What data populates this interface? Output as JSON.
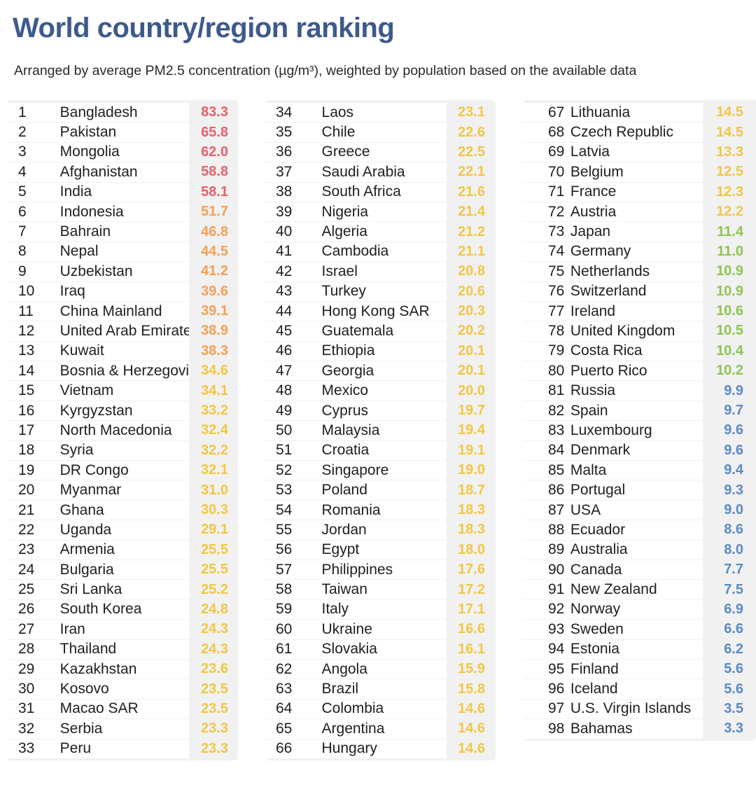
{
  "title": "World country/region ranking",
  "subtitle": "Arranged by average PM2.5 concentration (µg/m³), weighted by population based on the available data",
  "colors": {
    "red": "#e8606b",
    "orange": "#f4a056",
    "yellow": "#f2c744",
    "green": "#8fc553",
    "blue": "#5b8bc6",
    "panel_bg": "#f1f1f1",
    "title": "#3d5a8a"
  },
  "chart_data": {
    "type": "table",
    "metric": "Average PM2.5 concentration (µg/m³)",
    "rows": [
      {
        "rank": "1",
        "name": "Bangladesh",
        "value": 83.3,
        "color": "red"
      },
      {
        "rank": "2",
        "name": "Pakistan",
        "value": 65.8,
        "color": "red"
      },
      {
        "rank": "3",
        "name": "Mongolia",
        "value": 62.0,
        "color": "red"
      },
      {
        "rank": "4",
        "name": "Afghanistan",
        "value": 58.8,
        "color": "red"
      },
      {
        "rank": "5",
        "name": "India",
        "value": 58.1,
        "color": "red"
      },
      {
        "rank": "6",
        "name": "Indonesia",
        "value": 51.7,
        "color": "orange"
      },
      {
        "rank": "7",
        "name": "Bahrain",
        "value": 46.8,
        "color": "orange"
      },
      {
        "rank": "8",
        "name": "Nepal",
        "value": 44.5,
        "color": "orange"
      },
      {
        "rank": "9",
        "name": "Uzbekistan",
        "value": 41.2,
        "color": "orange"
      },
      {
        "rank": "10",
        "name": "Iraq",
        "value": 39.6,
        "color": "orange"
      },
      {
        "rank": "11",
        "name": "China Mainland",
        "value": 39.1,
        "color": "orange"
      },
      {
        "rank": "12",
        "name": "United Arab Emirates",
        "value": 38.9,
        "color": "orange"
      },
      {
        "rank": "13",
        "name": "Kuwait",
        "value": 38.3,
        "color": "orange"
      },
      {
        "rank": "14",
        "name": "Bosnia & Herzegovina",
        "value": 34.6,
        "color": "yellow"
      },
      {
        "rank": "15",
        "name": "Vietnam",
        "value": 34.1,
        "color": "yellow"
      },
      {
        "rank": "16",
        "name": "Kyrgyzstan",
        "value": 33.2,
        "color": "yellow"
      },
      {
        "rank": "17",
        "name": "North Macedonia",
        "value": 32.4,
        "color": "yellow"
      },
      {
        "rank": "18",
        "name": "Syria",
        "value": 32.2,
        "color": "yellow"
      },
      {
        "rank": "19",
        "name": "DR Congo",
        "value": 32.1,
        "color": "yellow"
      },
      {
        "rank": "20",
        "name": "Myanmar",
        "value": 31.0,
        "color": "yellow"
      },
      {
        "rank": "21",
        "name": "Ghana",
        "value": 30.3,
        "color": "yellow"
      },
      {
        "rank": "22",
        "name": "Uganda",
        "value": 29.1,
        "color": "yellow"
      },
      {
        "rank": "23",
        "name": "Armenia",
        "value": 25.5,
        "color": "yellow"
      },
      {
        "rank": "24",
        "name": "Bulgaria",
        "value": 25.5,
        "color": "yellow"
      },
      {
        "rank": "25",
        "name": "Sri Lanka",
        "value": 25.2,
        "color": "yellow"
      },
      {
        "rank": "26",
        "name": "South Korea",
        "value": 24.8,
        "color": "yellow"
      },
      {
        "rank": "27",
        "name": "Iran",
        "value": 24.3,
        "color": "yellow"
      },
      {
        "rank": "28",
        "name": "Thailand",
        "value": 24.3,
        "color": "yellow"
      },
      {
        "rank": "29",
        "name": "Kazakhstan",
        "value": 23.6,
        "color": "yellow"
      },
      {
        "rank": "30",
        "name": "Kosovo",
        "value": 23.5,
        "color": "yellow"
      },
      {
        "rank": "31",
        "name": "Macao SAR",
        "value": 23.5,
        "color": "yellow"
      },
      {
        "rank": "32",
        "name": "Serbia",
        "value": 23.3,
        "color": "yellow"
      },
      {
        "rank": "33",
        "name": "Peru",
        "value": 23.3,
        "color": "yellow"
      },
      {
        "rank": "34",
        "name": "Laos",
        "value": 23.1,
        "color": "yellow"
      },
      {
        "rank": "35",
        "name": "Chile",
        "value": 22.6,
        "color": "yellow"
      },
      {
        "rank": "36",
        "name": "Greece",
        "value": 22.5,
        "color": "yellow"
      },
      {
        "rank": "37",
        "name": "Saudi Arabia",
        "value": 22.1,
        "color": "yellow"
      },
      {
        "rank": "38",
        "name": "South Africa",
        "value": 21.6,
        "color": "yellow"
      },
      {
        "rank": "39",
        "name": "Nigeria",
        "value": 21.4,
        "color": "yellow"
      },
      {
        "rank": "40",
        "name": "Algeria",
        "value": 21.2,
        "color": "yellow"
      },
      {
        "rank": "41",
        "name": "Cambodia",
        "value": 21.1,
        "color": "yellow"
      },
      {
        "rank": "42",
        "name": "Israel",
        "value": 20.8,
        "color": "yellow"
      },
      {
        "rank": "43",
        "name": "Turkey",
        "value": 20.6,
        "color": "yellow"
      },
      {
        "rank": "44",
        "name": "Hong Kong SAR",
        "value": 20.3,
        "color": "yellow"
      },
      {
        "rank": "45",
        "name": "Guatemala",
        "value": 20.2,
        "color": "yellow"
      },
      {
        "rank": "46",
        "name": "Ethiopia",
        "value": 20.1,
        "color": "yellow"
      },
      {
        "rank": "47",
        "name": "Georgia",
        "value": 20.1,
        "color": "yellow"
      },
      {
        "rank": "48",
        "name": "Mexico",
        "value": 20.0,
        "color": "yellow"
      },
      {
        "rank": "49",
        "name": "Cyprus",
        "value": 19.7,
        "color": "yellow"
      },
      {
        "rank": "50",
        "name": "Malaysia",
        "value": 19.4,
        "color": "yellow"
      },
      {
        "rank": "51",
        "name": "Croatia",
        "value": 19.1,
        "color": "yellow"
      },
      {
        "rank": "52",
        "name": "Singapore",
        "value": 19.0,
        "color": "yellow"
      },
      {
        "rank": "53",
        "name": "Poland",
        "value": 18.7,
        "color": "yellow"
      },
      {
        "rank": "54",
        "name": "Romania",
        "value": 18.3,
        "color": "yellow"
      },
      {
        "rank": "55",
        "name": "Jordan",
        "value": 18.3,
        "color": "yellow"
      },
      {
        "rank": "56",
        "name": "Egypt",
        "value": 18.0,
        "color": "yellow"
      },
      {
        "rank": "57",
        "name": "Philippines",
        "value": 17.6,
        "color": "yellow"
      },
      {
        "rank": "58",
        "name": "Taiwan",
        "value": 17.2,
        "color": "yellow"
      },
      {
        "rank": "59",
        "name": "Italy",
        "value": 17.1,
        "color": "yellow"
      },
      {
        "rank": "60",
        "name": "Ukraine",
        "value": 16.6,
        "color": "yellow"
      },
      {
        "rank": "61",
        "name": "Slovakia",
        "value": 16.1,
        "color": "yellow"
      },
      {
        "rank": "62",
        "name": "Angola",
        "value": 15.9,
        "color": "yellow"
      },
      {
        "rank": "63",
        "name": "Brazil",
        "value": 15.8,
        "color": "yellow"
      },
      {
        "rank": "64",
        "name": "Colombia",
        "value": 14.6,
        "color": "yellow"
      },
      {
        "rank": "65",
        "name": "Argentina",
        "value": 14.6,
        "color": "yellow"
      },
      {
        "rank": "66",
        "name": "Hungary",
        "value": 14.6,
        "color": "yellow"
      },
      {
        "rank": "67",
        "name": "Lithuania",
        "value": 14.5,
        "color": "yellow"
      },
      {
        "rank": "68",
        "name": "Czech Republic",
        "value": 14.5,
        "color": "yellow"
      },
      {
        "rank": "69",
        "name": "Latvia",
        "value": 13.3,
        "color": "yellow"
      },
      {
        "rank": "70",
        "name": "Belgium",
        "value": 12.5,
        "color": "yellow"
      },
      {
        "rank": "71",
        "name": "France",
        "value": 12.3,
        "color": "yellow"
      },
      {
        "rank": "72",
        "name": "Austria",
        "value": 12.2,
        "color": "yellow"
      },
      {
        "rank": "73",
        "name": "Japan",
        "value": 11.4,
        "color": "green"
      },
      {
        "rank": "74",
        "name": "Germany",
        "value": 11.0,
        "color": "green"
      },
      {
        "rank": "75",
        "name": "Netherlands",
        "value": 10.9,
        "color": "green"
      },
      {
        "rank": "76",
        "name": "Switzerland",
        "value": 10.9,
        "color": "green"
      },
      {
        "rank": "77",
        "name": "Ireland",
        "value": 10.6,
        "color": "green"
      },
      {
        "rank": "78",
        "name": "United Kingdom",
        "value": 10.5,
        "color": "green"
      },
      {
        "rank": "79",
        "name": "Costa Rica",
        "value": 10.4,
        "color": "green"
      },
      {
        "rank": "80",
        "name": "Puerto Rico",
        "value": 10.2,
        "color": "green"
      },
      {
        "rank": "81",
        "name": "Russia",
        "value": 9.9,
        "color": "blue"
      },
      {
        "rank": "82",
        "name": "Spain",
        "value": 9.7,
        "color": "blue"
      },
      {
        "rank": "83",
        "name": "Luxembourg",
        "value": 9.6,
        "color": "blue"
      },
      {
        "rank": "84",
        "name": "Denmark",
        "value": 9.6,
        "color": "blue"
      },
      {
        "rank": "85",
        "name": "Malta",
        "value": 9.4,
        "color": "blue"
      },
      {
        "rank": "86",
        "name": "Portugal",
        "value": 9.3,
        "color": "blue"
      },
      {
        "rank": "87",
        "name": "USA",
        "value": 9.0,
        "color": "blue"
      },
      {
        "rank": "88",
        "name": "Ecuador",
        "value": 8.6,
        "color": "blue"
      },
      {
        "rank": "89",
        "name": "Australia",
        "value": 8.0,
        "color": "blue"
      },
      {
        "rank": "90",
        "name": "Canada",
        "value": 7.7,
        "color": "blue"
      },
      {
        "rank": "91",
        "name": "New Zealand",
        "value": 7.5,
        "color": "blue"
      },
      {
        "rank": "92",
        "name": "Norway",
        "value": 6.9,
        "color": "blue"
      },
      {
        "rank": "93",
        "name": "Sweden",
        "value": 6.6,
        "color": "blue"
      },
      {
        "rank": "94",
        "name": "Estonia",
        "value": 6.2,
        "color": "blue"
      },
      {
        "rank": "95",
        "name": "Finland",
        "value": 5.6,
        "color": "blue"
      },
      {
        "rank": "96",
        "name": "Iceland",
        "value": 5.6,
        "color": "blue"
      },
      {
        "rank": "97",
        "name": "U.S. Virgin Islands",
        "value": 3.5,
        "color": "blue"
      },
      {
        "rank": "98",
        "name": "Bahamas",
        "value": 3.3,
        "color": "blue"
      }
    ]
  }
}
